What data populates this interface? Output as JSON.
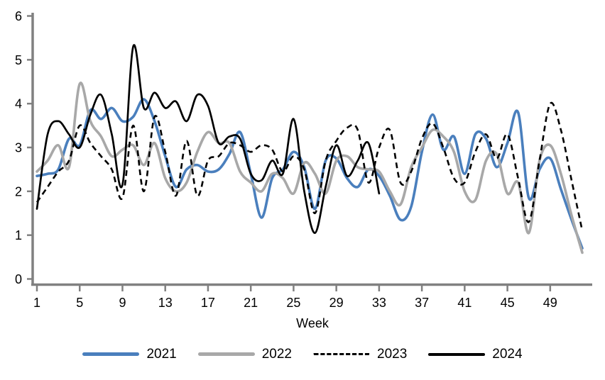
{
  "chart_data": {
    "type": "line",
    "title": "",
    "xlabel": "Week",
    "ylabel": "",
    "x_axis": {
      "label": "Week",
      "ticks": [
        1,
        5,
        9,
        13,
        17,
        21,
        25,
        29,
        33,
        37,
        41,
        45,
        49
      ],
      "range": [
        1,
        52
      ]
    },
    "y_axis": {
      "label": "",
      "ticks": [
        0,
        1,
        2,
        3,
        4,
        5,
        6
      ],
      "range": [
        0,
        6
      ]
    },
    "grid": false,
    "legend_position": "bottom",
    "axis_color": "#808080",
    "weeks": [
      1,
      2,
      3,
      4,
      5,
      6,
      7,
      8,
      9,
      10,
      11,
      12,
      13,
      14,
      15,
      16,
      17,
      18,
      19,
      20,
      21,
      22,
      23,
      24,
      25,
      26,
      27,
      28,
      29,
      30,
      31,
      32,
      33,
      34,
      35,
      36,
      37,
      38,
      39,
      40,
      41,
      42,
      43,
      44,
      45,
      46,
      47,
      48,
      49,
      50,
      51,
      52
    ],
    "series": [
      {
        "name": "2021",
        "color": "#4a7fbd",
        "style": "solid",
        "width": 3.6,
        "values": [
          2.35,
          2.4,
          2.5,
          3.2,
          3.05,
          3.85,
          3.65,
          3.9,
          3.6,
          3.7,
          4.1,
          3.6,
          2.8,
          2.1,
          2.5,
          2.6,
          2.45,
          2.5,
          2.85,
          3.35,
          2.4,
          1.4,
          2.3,
          2.5,
          2.9,
          2.55,
          1.6,
          2.7,
          2.75,
          2.3,
          2.1,
          2.5,
          2.35,
          1.9,
          1.35,
          1.65,
          2.9,
          3.75,
          2.95,
          3.25,
          2.4,
          3.3,
          3.2,
          2.55,
          3.1,
          3.8,
          1.85,
          2.5,
          2.75,
          2.05,
          1.35,
          0.7
        ]
      },
      {
        "name": "2022",
        "color": "#a8a8a8",
        "style": "solid",
        "width": 3.6,
        "values": [
          2.45,
          2.7,
          3.05,
          2.55,
          4.45,
          3.6,
          3.25,
          2.8,
          2.95,
          3.05,
          2.6,
          3.1,
          2.3,
          2.0,
          2.2,
          2.9,
          3.35,
          3.1,
          3.1,
          2.45,
          2.2,
          2.0,
          2.4,
          2.3,
          1.95,
          2.65,
          2.4,
          1.95,
          2.7,
          2.8,
          2.55,
          2.5,
          2.45,
          2.0,
          1.7,
          2.55,
          3.0,
          3.4,
          3.25,
          2.9,
          2.0,
          1.8,
          2.7,
          2.85,
          1.95,
          2.2,
          1.05,
          2.7,
          3.05,
          2.4,
          1.45,
          0.6
        ]
      },
      {
        "name": "2023",
        "color": "#000000",
        "style": "dashed",
        "width": 2.6,
        "values": [
          1.75,
          2.1,
          2.45,
          2.7,
          3.5,
          3.1,
          2.8,
          2.5,
          1.85,
          3.5,
          2.0,
          3.7,
          2.9,
          1.9,
          3.15,
          1.9,
          2.7,
          2.8,
          3.1,
          3.05,
          2.9,
          3.05,
          2.95,
          2.45,
          2.8,
          2.5,
          1.5,
          2.7,
          3.15,
          3.45,
          3.4,
          2.2,
          3.0,
          3.4,
          2.2,
          2.45,
          3.2,
          3.55,
          3.0,
          2.3,
          2.2,
          2.9,
          3.3,
          2.75,
          3.3,
          2.3,
          1.3,
          2.7,
          4.0,
          3.4,
          2.25,
          1.1
        ]
      },
      {
        "name": "2024",
        "color": "#000000",
        "style": "solid",
        "width": 2.7,
        "values": [
          1.6,
          3.3,
          3.6,
          3.3,
          3.0,
          3.75,
          4.2,
          3.3,
          2.15,
          5.3,
          3.9,
          4.25,
          3.9,
          4.05,
          3.6,
          4.2,
          3.95,
          3.1,
          3.25,
          3.2,
          2.4,
          2.25,
          2.7,
          2.4,
          3.65,
          2.0,
          1.05,
          2.1,
          3.05,
          2.35,
          2.7,
          3.1,
          1.95
        ]
      }
    ]
  }
}
